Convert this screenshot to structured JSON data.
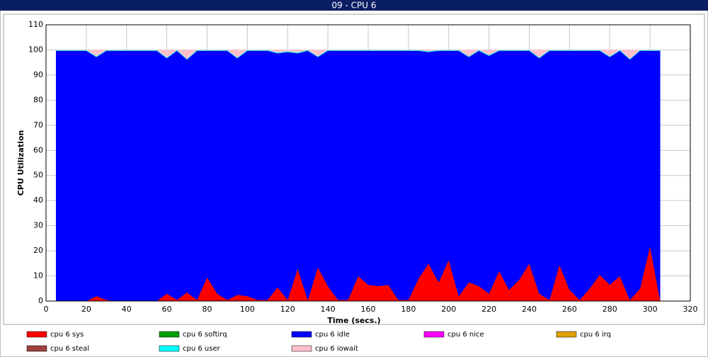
{
  "chart_data": {
    "type": "stacked_area",
    "title": "09 - CPU 6",
    "xlabel": "Time (secs.)",
    "ylabel": "CPU Utilization",
    "xlim": [
      0,
      320
    ],
    "xticks": [
      0,
      20,
      40,
      60,
      80,
      100,
      120,
      140,
      160,
      180,
      200,
      220,
      240,
      260,
      280,
      300,
      320
    ],
    "ylim": [
      0,
      110
    ],
    "yticks": [
      0,
      10,
      20,
      30,
      40,
      50,
      60,
      70,
      80,
      90,
      100,
      110
    ],
    "grid": true,
    "x": [
      5,
      10,
      15,
      20,
      25,
      30,
      35,
      40,
      45,
      50,
      55,
      60,
      65,
      70,
      75,
      80,
      85,
      90,
      95,
      100,
      105,
      110,
      115,
      120,
      125,
      130,
      135,
      140,
      145,
      150,
      155,
      160,
      165,
      170,
      175,
      180,
      185,
      190,
      195,
      200,
      205,
      210,
      215,
      220,
      225,
      230,
      235,
      240,
      245,
      250,
      255,
      260,
      265,
      270,
      275,
      280,
      285,
      290,
      295,
      300,
      305
    ],
    "series": [
      {
        "name": "cpu 6 sys",
        "color": "#ff0000",
        "values": [
          0,
          0,
          0,
          0,
          2,
          0.5,
          0,
          0,
          0,
          0,
          0,
          3,
          0.5,
          3.5,
          0.5,
          9.5,
          3,
          0.5,
          2.5,
          2,
          0.5,
          0.5,
          5.5,
          0.5,
          13,
          0.5,
          13.5,
          6,
          0.5,
          0.5,
          10,
          6.5,
          6,
          6.5,
          0.5,
          0.5,
          9,
          15,
          7.5,
          16.5,
          2,
          7.5,
          6,
          3,
          12,
          4.5,
          8.5,
          15,
          3,
          0.5,
          14.5,
          4.5,
          0.5,
          5,
          10.5,
          6.5,
          10,
          0.5,
          5,
          22,
          0.5
        ]
      },
      {
        "name": "cpu 6 softirq",
        "color": "#00a000",
        "values": [
          0,
          0,
          0,
          0,
          0,
          0,
          0,
          0,
          0,
          0,
          0,
          0,
          0,
          0,
          0,
          0,
          0,
          0,
          0,
          0,
          0,
          0,
          0,
          0,
          0,
          0,
          0,
          0,
          0,
          0,
          0,
          0,
          0,
          0,
          0,
          0,
          0,
          0,
          0,
          0,
          0,
          0,
          0,
          0,
          0,
          0,
          0,
          0,
          0,
          0,
          0,
          0,
          0,
          0,
          0,
          0,
          0,
          0,
          0,
          0,
          0
        ]
      },
      {
        "name": "cpu 6 idle",
        "color": "#0000ff",
        "values": [
          99.7,
          99.7,
          99.7,
          99.7,
          95.2,
          99.2,
          99.7,
          99.7,
          99.7,
          99.7,
          99.7,
          93.7,
          99.2,
          92.7,
          99.2,
          90.2,
          96.7,
          99.2,
          94.2,
          97.7,
          99.2,
          99.2,
          93.2,
          98.7,
          85.7,
          99.2,
          83.7,
          93.7,
          99.2,
          99.2,
          89.7,
          93.2,
          93.7,
          93.2,
          99.2,
          99.2,
          90.7,
          84.2,
          92.2,
          83.2,
          97.7,
          89.7,
          93.7,
          94.7,
          87.7,
          95.2,
          91.2,
          84.7,
          93.7,
          99.2,
          85.2,
          95.2,
          99.2,
          94.7,
          89.2,
          90.7,
          89.7,
          95.7,
          94.7,
          77.7,
          99.2
        ]
      },
      {
        "name": "cpu 6 nice",
        "color": "#ff00ff",
        "values": [
          0,
          0,
          0,
          0,
          0,
          0,
          0,
          0,
          0,
          0,
          0,
          0,
          0,
          0,
          0,
          0,
          0,
          0,
          0,
          0,
          0,
          0,
          0,
          0,
          0,
          0,
          0,
          0,
          0,
          0,
          0,
          0,
          0,
          0,
          0,
          0,
          0,
          0,
          0,
          0,
          0,
          0,
          0,
          0,
          0,
          0,
          0,
          0,
          0,
          0,
          0,
          0,
          0,
          0,
          0,
          0,
          0,
          0,
          0,
          0,
          0
        ]
      },
      {
        "name": "cpu 6 irq",
        "color": "#e0a000",
        "values": [
          0,
          0,
          0,
          0,
          0,
          0,
          0,
          0,
          0,
          0,
          0,
          0,
          0,
          0,
          0,
          0,
          0,
          0,
          0,
          0,
          0,
          0,
          0,
          0,
          0,
          0,
          0,
          0,
          0,
          0,
          0,
          0,
          0,
          0,
          0,
          0,
          0,
          0,
          0,
          0,
          0,
          0,
          0,
          0,
          0,
          0,
          0,
          0,
          0,
          0,
          0,
          0,
          0,
          0,
          0,
          0,
          0,
          0,
          0,
          0,
          0
        ]
      },
      {
        "name": "cpu 6 steal",
        "color": "#a04040",
        "values": [
          0,
          0,
          0,
          0,
          0,
          0,
          0,
          0,
          0,
          0,
          0,
          0,
          0,
          0,
          0,
          0,
          0,
          0,
          0,
          0,
          0,
          0,
          0,
          0,
          0,
          0,
          0,
          0,
          0,
          0,
          0,
          0,
          0,
          0,
          0,
          0,
          0,
          0,
          0,
          0,
          0,
          0,
          0,
          0,
          0,
          0,
          0,
          0,
          0,
          0,
          0,
          0,
          0,
          0,
          0,
          0,
          0,
          0,
          0,
          0,
          0
        ]
      },
      {
        "name": "cpu 6 user",
        "color": "#00ffff",
        "values": [
          0.3,
          0.3,
          0.3,
          0.3,
          0.3,
          0.3,
          0.3,
          0.3,
          0.3,
          0.3,
          0.3,
          0.3,
          0.3,
          0.3,
          0.3,
          0.3,
          0.3,
          0.3,
          0.3,
          0.3,
          0.3,
          0.3,
          0.3,
          0.3,
          0.3,
          0.3,
          0.3,
          0.3,
          0.3,
          0.3,
          0.3,
          0.3,
          0.3,
          0.3,
          0.3,
          0.3,
          0.3,
          0.3,
          0.3,
          0.3,
          0.3,
          0.3,
          0.3,
          0.3,
          0.3,
          0.3,
          0.3,
          0.3,
          0.3,
          0.3,
          0.3,
          0.3,
          0.3,
          0.3,
          0.3,
          0.3,
          0.3,
          0.3,
          0.3,
          0.3,
          0.3
        ]
      },
      {
        "name": "cpu 6 iowait",
        "color": "#ffc0cb",
        "values": [
          0,
          0,
          0,
          0,
          2.5,
          0,
          0,
          0,
          0,
          0,
          0,
          3,
          0,
          3.5,
          0,
          0,
          0,
          0,
          3,
          0,
          0,
          0,
          1,
          0.5,
          1,
          0,
          2.5,
          0,
          0,
          0,
          0,
          0,
          0,
          0,
          0,
          0,
          0,
          0.5,
          0,
          0,
          0,
          2.5,
          0,
          2,
          0,
          0,
          0,
          0,
          3,
          0,
          0,
          0,
          0,
          0,
          0,
          2.5,
          0,
          3.5,
          0,
          0,
          0
        ]
      }
    ]
  }
}
